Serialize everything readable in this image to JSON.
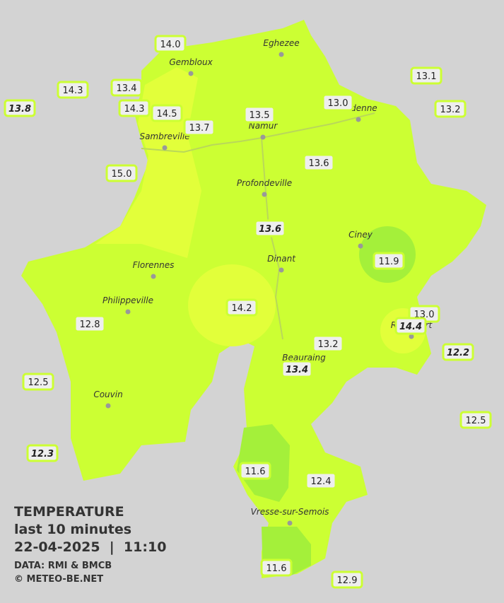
{
  "title": {
    "line1": "TEMPERATURE",
    "line2": "last 10 minutes",
    "line3": "22-04-2025  |  11:10",
    "source": "DATA: RMI & BMCB",
    "credit": "© METEO-BE.NET"
  },
  "towns": [
    "Eghezee",
    "Gembloux",
    "Andenne",
    "Namur",
    "Sambreville",
    "Profondeville",
    "Ciney",
    "Dinant",
    "Florennes",
    "Philippeville",
    "Rochefort",
    "Beauraing",
    "Couvin",
    "Vresse-sur-Semois"
  ],
  "stations": [
    {
      "label": "14.0",
      "italic": false
    },
    {
      "label": "13.4",
      "italic": false
    },
    {
      "label": "14.3",
      "italic": false
    },
    {
      "label": "13.8",
      "italic": true
    },
    {
      "label": "14.3",
      "italic": false
    },
    {
      "label": "14.5",
      "italic": false
    },
    {
      "label": "13.7",
      "italic": false
    },
    {
      "label": "13.5",
      "italic": false
    },
    {
      "label": "13.0",
      "italic": false
    },
    {
      "label": "13.1",
      "italic": false
    },
    {
      "label": "13.2",
      "italic": false
    },
    {
      "label": "15.0",
      "italic": false
    },
    {
      "label": "13.6",
      "italic": false
    },
    {
      "label": "13.6",
      "italic": true
    },
    {
      "label": "11.9",
      "italic": false
    },
    {
      "label": "14.2",
      "italic": false
    },
    {
      "label": "12.8",
      "italic": false
    },
    {
      "label": "13.0",
      "italic": false
    },
    {
      "label": "14.4",
      "italic": true
    },
    {
      "label": "13.2",
      "italic": false
    },
    {
      "label": "12.2",
      "italic": true
    },
    {
      "label": "13.4",
      "italic": true
    },
    {
      "label": "12.5",
      "italic": false
    },
    {
      "label": "12.5",
      "italic": false
    },
    {
      "label": "12.3",
      "italic": true
    },
    {
      "label": "11.6",
      "italic": false
    },
    {
      "label": "12.4",
      "italic": false
    },
    {
      "label": "11.6",
      "italic": false
    },
    {
      "label": "12.9",
      "italic": false
    }
  ]
}
